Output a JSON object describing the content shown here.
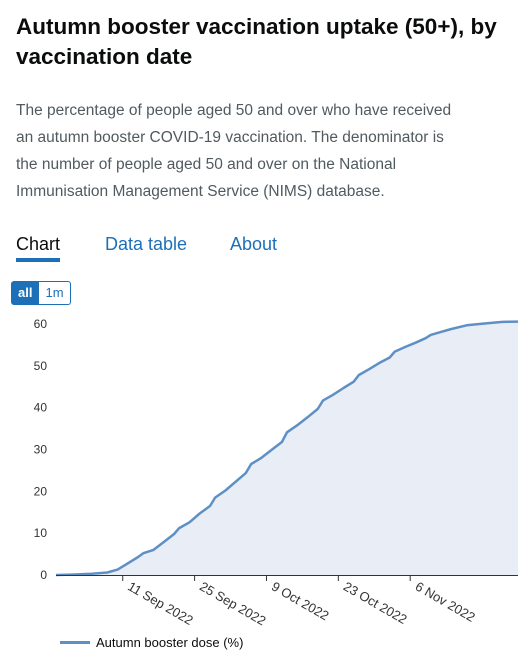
{
  "header": {
    "title": "Autumn booster vaccination uptake (50+), by vaccination date",
    "description": "The percentage of people aged 50 and over who have received an autumn booster COVID-19 vaccination. The denominator is the number of people aged 50 and over on the National Immunisation Management Service (NIMS) database."
  },
  "tabs": [
    {
      "label": "Chart",
      "active": true
    },
    {
      "label": "Data table",
      "active": false
    },
    {
      "label": "About",
      "active": false
    }
  ],
  "range_buttons": [
    {
      "label": "all",
      "active": true
    },
    {
      "label": "1m",
      "active": false
    }
  ],
  "colors": {
    "line": "#5f90c5",
    "area": "#e9eef6",
    "accent": "#1d70b8"
  },
  "chart_data": {
    "type": "area",
    "y_ticks": [
      0,
      10,
      20,
      30,
      40,
      50,
      60
    ],
    "ylim": [
      0,
      60
    ],
    "xlim": [
      "2022-08-29",
      "2022-11-27"
    ],
    "x_ticks": [
      {
        "date": "2022-09-11",
        "label": "11 Sep 2022"
      },
      {
        "date": "2022-09-25",
        "label": "25 Sep 2022"
      },
      {
        "date": "2022-10-09",
        "label": "9 Oct 2022"
      },
      {
        "date": "2022-10-23",
        "label": "23 Oct 2022"
      },
      {
        "date": "2022-11-06",
        "label": "6 Nov 2022"
      }
    ],
    "grid": false,
    "legend_position": "bottom-left",
    "series": [
      {
        "name": "Autumn booster dose (%)",
        "points": [
          [
            "2022-08-29",
            0
          ],
          [
            "2022-09-01",
            0.1
          ],
          [
            "2022-09-05",
            0.3
          ],
          [
            "2022-09-08",
            0.6
          ],
          [
            "2022-09-10",
            1.3
          ],
          [
            "2022-09-12",
            2.8
          ],
          [
            "2022-09-14",
            4.3
          ],
          [
            "2022-09-15",
            5.2
          ],
          [
            "2022-09-17",
            6.0
          ],
          [
            "2022-09-19",
            7.9
          ],
          [
            "2022-09-21",
            9.8
          ],
          [
            "2022-09-22",
            11.2
          ],
          [
            "2022-09-24",
            12.6
          ],
          [
            "2022-09-26",
            14.7
          ],
          [
            "2022-09-28",
            16.5
          ],
          [
            "2022-09-29",
            18.5
          ],
          [
            "2022-10-01",
            20.2
          ],
          [
            "2022-10-03",
            22.3
          ],
          [
            "2022-10-05",
            24.4
          ],
          [
            "2022-10-06",
            26.5
          ],
          [
            "2022-10-08",
            28.0
          ],
          [
            "2022-10-10",
            29.9
          ],
          [
            "2022-10-12",
            31.8
          ],
          [
            "2022-10-13",
            34.1
          ],
          [
            "2022-10-15",
            35.8
          ],
          [
            "2022-10-17",
            37.7
          ],
          [
            "2022-10-19",
            39.7
          ],
          [
            "2022-10-20",
            41.7
          ],
          [
            "2022-10-22",
            43.1
          ],
          [
            "2022-10-24",
            44.7
          ],
          [
            "2022-10-26",
            46.2
          ],
          [
            "2022-10-27",
            47.8
          ],
          [
            "2022-10-29",
            49.2
          ],
          [
            "2022-10-31",
            50.7
          ],
          [
            "2022-11-02",
            52.0
          ],
          [
            "2022-11-03",
            53.4
          ],
          [
            "2022-11-05",
            54.5
          ],
          [
            "2022-11-07",
            55.5
          ],
          [
            "2022-11-09",
            56.6
          ],
          [
            "2022-11-10",
            57.4
          ],
          [
            "2022-11-12",
            58.1
          ],
          [
            "2022-11-14",
            58.8
          ],
          [
            "2022-11-17",
            59.7
          ],
          [
            "2022-11-21",
            60.2
          ],
          [
            "2022-11-24",
            60.5
          ]
        ]
      }
    ]
  }
}
